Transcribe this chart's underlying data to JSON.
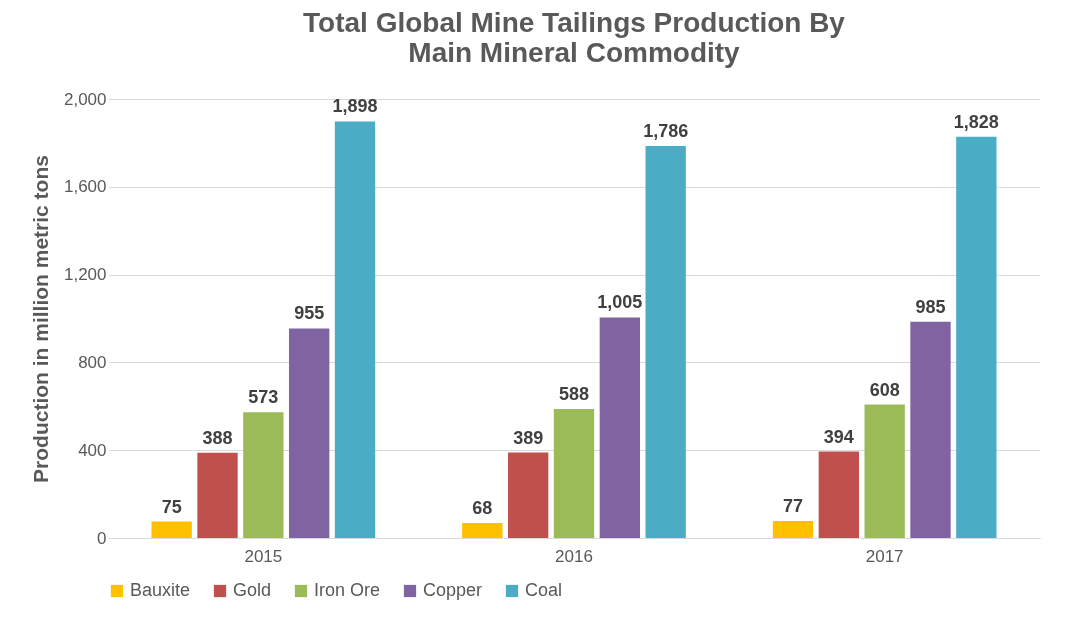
{
  "chart_data": {
    "type": "bar",
    "title": "Total Global Mine Tailings Production By\nMain Mineral Commodity",
    "ylabel": "Production in million metric tons",
    "categories": [
      "2015",
      "2016",
      "2017"
    ],
    "series": [
      {
        "name": "Bauxite",
        "color": "#ffc000",
        "values": [
          75,
          68,
          77
        ],
        "value_labels": [
          "75",
          "68",
          "77"
        ]
      },
      {
        "name": "Gold",
        "color": "#c0504d",
        "values": [
          388,
          389,
          394
        ],
        "value_labels": [
          "388",
          "389",
          "394"
        ]
      },
      {
        "name": "Iron Ore",
        "color": "#9bbb59",
        "values": [
          573,
          588,
          608
        ],
        "value_labels": [
          "573",
          "588",
          "608"
        ]
      },
      {
        "name": "Copper",
        "color": "#8064a2",
        "values": [
          955,
          1005,
          985
        ],
        "value_labels": [
          "955",
          "1,005",
          "985"
        ]
      },
      {
        "name": "Coal",
        "color": "#4bacc6",
        "values": [
          1898,
          1786,
          1828
        ],
        "value_labels": [
          "1,898",
          "1,786",
          "1,828"
        ]
      }
    ],
    "ylim": [
      0,
      2000
    ],
    "yticks": [
      0,
      {
        "value": 400,
        "label": "400"
      },
      {
        "value": 800,
        "label": "800"
      },
      {
        "value": 1200,
        "label": "1,200"
      },
      {
        "value": 1600,
        "label": "1,600"
      },
      {
        "value": 2000,
        "label": "2,000"
      }
    ],
    "grid": "y",
    "legend": "bottom"
  }
}
